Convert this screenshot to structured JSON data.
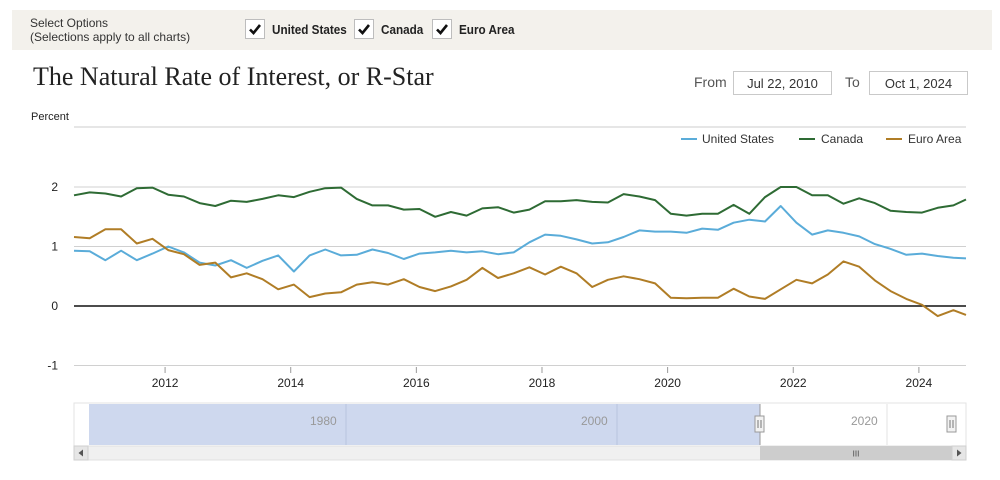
{
  "options": {
    "title_line1": "Select Options",
    "title_line2": "(Selections apply to all charts)",
    "checks": [
      {
        "label": "United States",
        "checked": true
      },
      {
        "label": "Canada",
        "checked": true
      },
      {
        "label": "Euro Area",
        "checked": true
      }
    ]
  },
  "date_range": {
    "from_label": "From",
    "from_value": "Jul 22, 2010",
    "to_label": "To",
    "to_value": "Oct 1, 2024"
  },
  "navigator": {
    "labels": [
      "1980",
      "2000",
      "2020"
    ],
    "scroll_grip": "III"
  },
  "colors": {
    "united_states": "#5aacd9",
    "canada": "#2e6b34",
    "euro_area": "#b07d26",
    "navigator_fill": "#ced8ee"
  },
  "chart_data": {
    "type": "line",
    "title": "The Natural Rate of Interest, or R-Star",
    "ylabel": "Percent",
    "xlabel": "",
    "xlim": [
      2010.55,
      2024.75
    ],
    "ylim": [
      -1,
      2.5
    ],
    "yticks": [
      -1,
      0,
      1,
      2
    ],
    "xticks": [
      2012,
      2014,
      2016,
      2018,
      2020,
      2022,
      2024
    ],
    "legend_position": "top-right",
    "grid": true,
    "series": [
      {
        "name": "United States",
        "color_key": "united_states",
        "x": [
          2010.55,
          2010.8,
          2011.05,
          2011.3,
          2011.55,
          2011.8,
          2012.05,
          2012.3,
          2012.55,
          2012.8,
          2013.05,
          2013.3,
          2013.55,
          2013.8,
          2014.05,
          2014.3,
          2014.55,
          2014.8,
          2015.05,
          2015.3,
          2015.55,
          2015.8,
          2016.05,
          2016.3,
          2016.55,
          2016.8,
          2017.05,
          2017.3,
          2017.55,
          2017.8,
          2018.05,
          2018.3,
          2018.55,
          2018.8,
          2019.05,
          2019.3,
          2019.55,
          2019.8,
          2020.05,
          2020.3,
          2020.55,
          2020.8,
          2021.05,
          2021.3,
          2021.55,
          2021.8,
          2022.05,
          2022.3,
          2022.55,
          2022.8,
          2023.05,
          2023.3,
          2023.55,
          2023.8,
          2024.05,
          2024.3,
          2024.55,
          2024.75
        ],
        "values": [
          0.93,
          0.92,
          0.77,
          0.93,
          0.77,
          0.88,
          1.0,
          0.9,
          0.73,
          0.68,
          0.77,
          0.64,
          0.76,
          0.85,
          0.58,
          0.85,
          0.95,
          0.85,
          0.86,
          0.95,
          0.89,
          0.79,
          0.88,
          0.9,
          0.93,
          0.9,
          0.92,
          0.87,
          0.9,
          1.07,
          1.2,
          1.18,
          1.12,
          1.05,
          1.07,
          1.16,
          1.27,
          1.25,
          1.25,
          1.23,
          1.3,
          1.28,
          1.4,
          1.45,
          1.42,
          1.68,
          1.4,
          1.2,
          1.27,
          1.23,
          1.17,
          1.04,
          0.96,
          0.86,
          0.88,
          0.84,
          0.81,
          0.8
        ]
      },
      {
        "name": "Canada",
        "color_key": "canada",
        "x": [
          2010.55,
          2010.8,
          2011.05,
          2011.3,
          2011.55,
          2011.8,
          2012.05,
          2012.3,
          2012.55,
          2012.8,
          2013.05,
          2013.3,
          2013.55,
          2013.8,
          2014.05,
          2014.3,
          2014.55,
          2014.8,
          2015.05,
          2015.3,
          2015.55,
          2015.8,
          2016.05,
          2016.3,
          2016.55,
          2016.8,
          2017.05,
          2017.3,
          2017.55,
          2017.8,
          2018.05,
          2018.3,
          2018.55,
          2018.8,
          2019.05,
          2019.3,
          2019.55,
          2019.8,
          2020.05,
          2020.3,
          2020.55,
          2020.8,
          2021.05,
          2021.3,
          2021.55,
          2021.8,
          2022.05,
          2022.3,
          2022.55,
          2022.8,
          2023.05,
          2023.3,
          2023.55,
          2023.8,
          2024.05,
          2024.3,
          2024.55,
          2024.75
        ],
        "values": [
          1.86,
          1.91,
          1.89,
          1.84,
          1.98,
          1.99,
          1.87,
          1.84,
          1.73,
          1.68,
          1.77,
          1.75,
          1.8,
          1.86,
          1.83,
          1.92,
          1.98,
          1.99,
          1.8,
          1.69,
          1.69,
          1.62,
          1.63,
          1.5,
          1.58,
          1.52,
          1.64,
          1.66,
          1.57,
          1.62,
          1.76,
          1.76,
          1.78,
          1.75,
          1.74,
          1.88,
          1.84,
          1.78,
          1.55,
          1.52,
          1.55,
          1.55,
          1.7,
          1.55,
          1.83,
          2.0,
          2.0,
          1.86,
          1.86,
          1.72,
          1.81,
          1.73,
          1.6,
          1.58,
          1.57,
          1.65,
          1.69,
          1.79
        ]
      },
      {
        "name": "Euro Area",
        "color_key": "euro_area",
        "x": [
          2010.55,
          2010.8,
          2011.05,
          2011.3,
          2011.55,
          2011.8,
          2012.05,
          2012.3,
          2012.55,
          2012.8,
          2013.05,
          2013.3,
          2013.55,
          2013.8,
          2014.05,
          2014.3,
          2014.55,
          2014.8,
          2015.05,
          2015.3,
          2015.55,
          2015.8,
          2016.05,
          2016.3,
          2016.55,
          2016.8,
          2017.05,
          2017.3,
          2017.55,
          2017.8,
          2018.05,
          2018.3,
          2018.55,
          2018.8,
          2019.05,
          2019.3,
          2019.55,
          2019.8,
          2020.05,
          2020.3,
          2020.55,
          2020.8,
          2021.05,
          2021.3,
          2021.55,
          2021.8,
          2022.05,
          2022.3,
          2022.55,
          2022.8,
          2023.05,
          2023.3,
          2023.55,
          2023.8,
          2024.05,
          2024.3,
          2024.55,
          2024.75
        ],
        "values": [
          1.16,
          1.14,
          1.29,
          1.29,
          1.05,
          1.13,
          0.94,
          0.87,
          0.69,
          0.73,
          0.48,
          0.55,
          0.45,
          0.28,
          0.36,
          0.15,
          0.21,
          0.23,
          0.36,
          0.4,
          0.36,
          0.45,
          0.32,
          0.25,
          0.33,
          0.44,
          0.64,
          0.47,
          0.55,
          0.65,
          0.53,
          0.66,
          0.55,
          0.32,
          0.44,
          0.5,
          0.45,
          0.38,
          0.14,
          0.13,
          0.14,
          0.14,
          0.29,
          0.16,
          0.12,
          0.28,
          0.44,
          0.38,
          0.53,
          0.75,
          0.66,
          0.43,
          0.25,
          0.12,
          0.02,
          -0.17,
          -0.07,
          -0.15
        ]
      }
    ]
  }
}
